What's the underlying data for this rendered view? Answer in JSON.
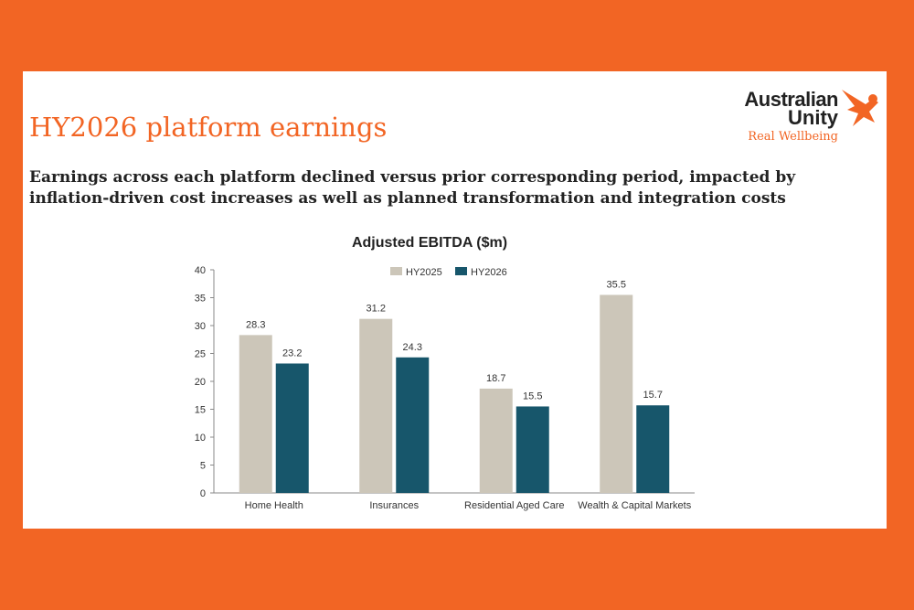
{
  "header": {
    "title": "HY2026 platform earnings",
    "subtitle": "Earnings across each platform declined versus prior corresponding period, impacted by inflation-driven cost increases as well as planned transformation and integration costs"
  },
  "logo": {
    "line1": "Australian",
    "line2": "Unity",
    "tagline": "Real Wellbeing",
    "icon": "kookaburra-bird-icon"
  },
  "colors": {
    "background": "#F26524",
    "accent": "#F26524",
    "hy2025": "#CCC6B9",
    "hy2026": "#17566B"
  },
  "chart_data": {
    "type": "bar",
    "title": "Adjusted EBITDA ($m)",
    "categories": [
      "Home Health",
      "Insurances",
      "Residential Aged Care",
      "Wealth & Capital Markets"
    ],
    "series": [
      {
        "name": "HY2025",
        "values": [
          28.3,
          31.2,
          18.7,
          35.5
        ]
      },
      {
        "name": "HY2026",
        "values": [
          23.2,
          24.3,
          15.5,
          15.7
        ]
      }
    ],
    "ylim": [
      0,
      40
    ],
    "yticks": [
      0,
      5,
      10,
      15,
      20,
      25,
      30,
      35,
      40
    ],
    "grid": false,
    "legend": "top-right"
  }
}
